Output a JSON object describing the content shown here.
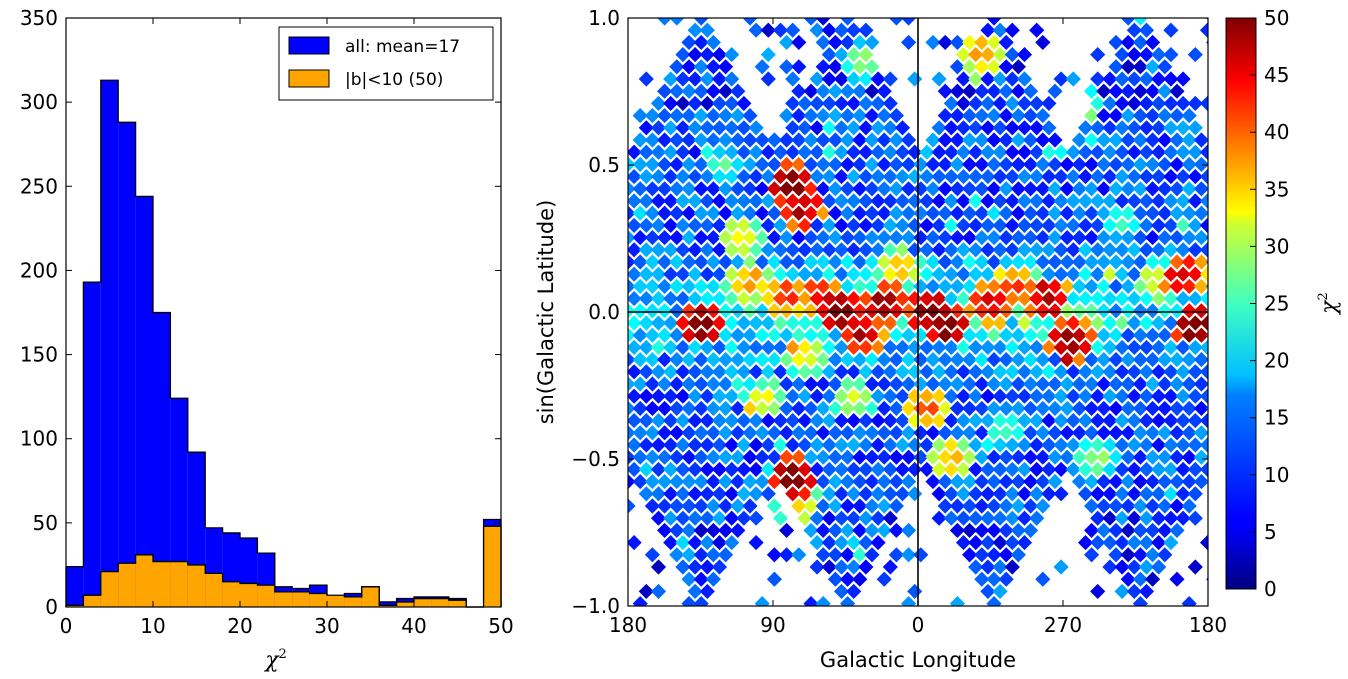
{
  "chart_data": [
    {
      "type": "histogram",
      "xlabel": "χ",
      "xlabel_sup": "2",
      "xlim": [
        0,
        50
      ],
      "ylim": [
        0,
        350
      ],
      "xticks": [
        "0",
        "10",
        "20",
        "30",
        "40",
        "50"
      ],
      "yticks": [
        "0",
        "50",
        "100",
        "150",
        "200",
        "250",
        "300",
        "350"
      ],
      "bin_edges": [
        0,
        2,
        4,
        6,
        8,
        10,
        12,
        14,
        16,
        18,
        20,
        22,
        24,
        26,
        28,
        30,
        32,
        34,
        36,
        38,
        40,
        42,
        44,
        46,
        48,
        50
      ],
      "series": [
        {
          "name": "all: mean=17",
          "color": "#0000ff",
          "values": [
            24,
            193,
            313,
            288,
            244,
            175,
            124,
            92,
            47,
            44,
            41,
            32,
            12,
            11,
            13,
            6,
            8,
            12,
            3,
            5,
            6,
            6,
            5,
            0,
            52
          ]
        },
        {
          "name": "|b|<10 (50)",
          "color": "#ffa500",
          "values": [
            1,
            7,
            21,
            26,
            31,
            27,
            27,
            25,
            20,
            15,
            14,
            13,
            9,
            9,
            8,
            7,
            6,
            12,
            1,
            3,
            5,
            5,
            4,
            0,
            48
          ]
        }
      ],
      "legend_position": "top-right"
    },
    {
      "type": "heatmap",
      "xlabel": "Galactic Longitude",
      "ylabel": "sin(Galactic Latitude)",
      "xticks": [
        "180",
        "90",
        "0",
        "270",
        "180"
      ],
      "yticks": [
        "−1.0",
        "−0.5",
        "0.0",
        "0.5",
        "1.0"
      ],
      "xlim": [
        180,
        -180
      ],
      "ylim": [
        -1,
        1
      ],
      "colorbar": {
        "label": "χ",
        "label_sup": "2",
        "range": [
          0,
          50
        ],
        "ticks": [
          "0",
          "5",
          "10",
          "15",
          "20",
          "25",
          "30",
          "35",
          "40",
          "45",
          "50"
        ],
        "colormap": "jet"
      },
      "hotspots": [
        {
          "l": 48,
          "b": 0.0,
          "value": 50
        },
        {
          "l": 20,
          "b": 0.02,
          "value": 48
        },
        {
          "l": 35,
          "b": -0.08,
          "value": 46
        },
        {
          "l": 60,
          "b": 0.05,
          "value": 42
        },
        {
          "l": -8,
          "b": 0.0,
          "value": 50
        },
        {
          "l": -18,
          "b": -0.05,
          "value": 50
        },
        {
          "l": -45,
          "b": 0.02,
          "value": 44
        },
        {
          "l": -80,
          "b": 0.05,
          "value": 46
        },
        {
          "l": -95,
          "b": -0.1,
          "value": 48
        },
        {
          "l": -60,
          "b": 0.08,
          "value": 40
        },
        {
          "l": 82,
          "b": 0.05,
          "value": 40
        },
        {
          "l": 135,
          "b": -0.05,
          "value": 50
        },
        {
          "l": 105,
          "b": 0.1,
          "value": 35
        },
        {
          "l": 70,
          "b": -0.15,
          "value": 30
        },
        {
          "l": -172,
          "b": -0.05,
          "value": 50
        },
        {
          "l": -165,
          "b": 0.12,
          "value": 45
        },
        {
          "l": 78,
          "b": 0.43,
          "value": 50
        },
        {
          "l": 72,
          "b": 0.35,
          "value": 47
        },
        {
          "l": 78,
          "b": -0.57,
          "value": 50
        },
        {
          "l": -40,
          "b": 0.88,
          "value": 35
        },
        {
          "l": 75,
          "b": -0.66,
          "value": 33
        },
        {
          "l": -5,
          "b": -0.33,
          "value": 38
        },
        {
          "l": 110,
          "b": 0.25,
          "value": 30
        },
        {
          "l": 12,
          "b": 0.15,
          "value": 32
        },
        {
          "l": -100,
          "b": 0.7,
          "value": 28
        },
        {
          "l": -110,
          "b": -0.5,
          "value": 25
        },
        {
          "l": -20,
          "b": -0.5,
          "value": 33
        },
        {
          "l": 40,
          "b": -0.3,
          "value": 28
        },
        {
          "l": -150,
          "b": 0.1,
          "value": 30
        },
        {
          "l": 95,
          "b": -0.3,
          "value": 28
        },
        {
          "l": 35,
          "b": 0.85,
          "value": 25
        },
        {
          "l": -55,
          "b": -0.4,
          "value": 22
        },
        {
          "l": 120,
          "b": 0.5,
          "value": 20
        },
        {
          "l": -125,
          "b": 0.3,
          "value": 20
        }
      ]
    }
  ]
}
